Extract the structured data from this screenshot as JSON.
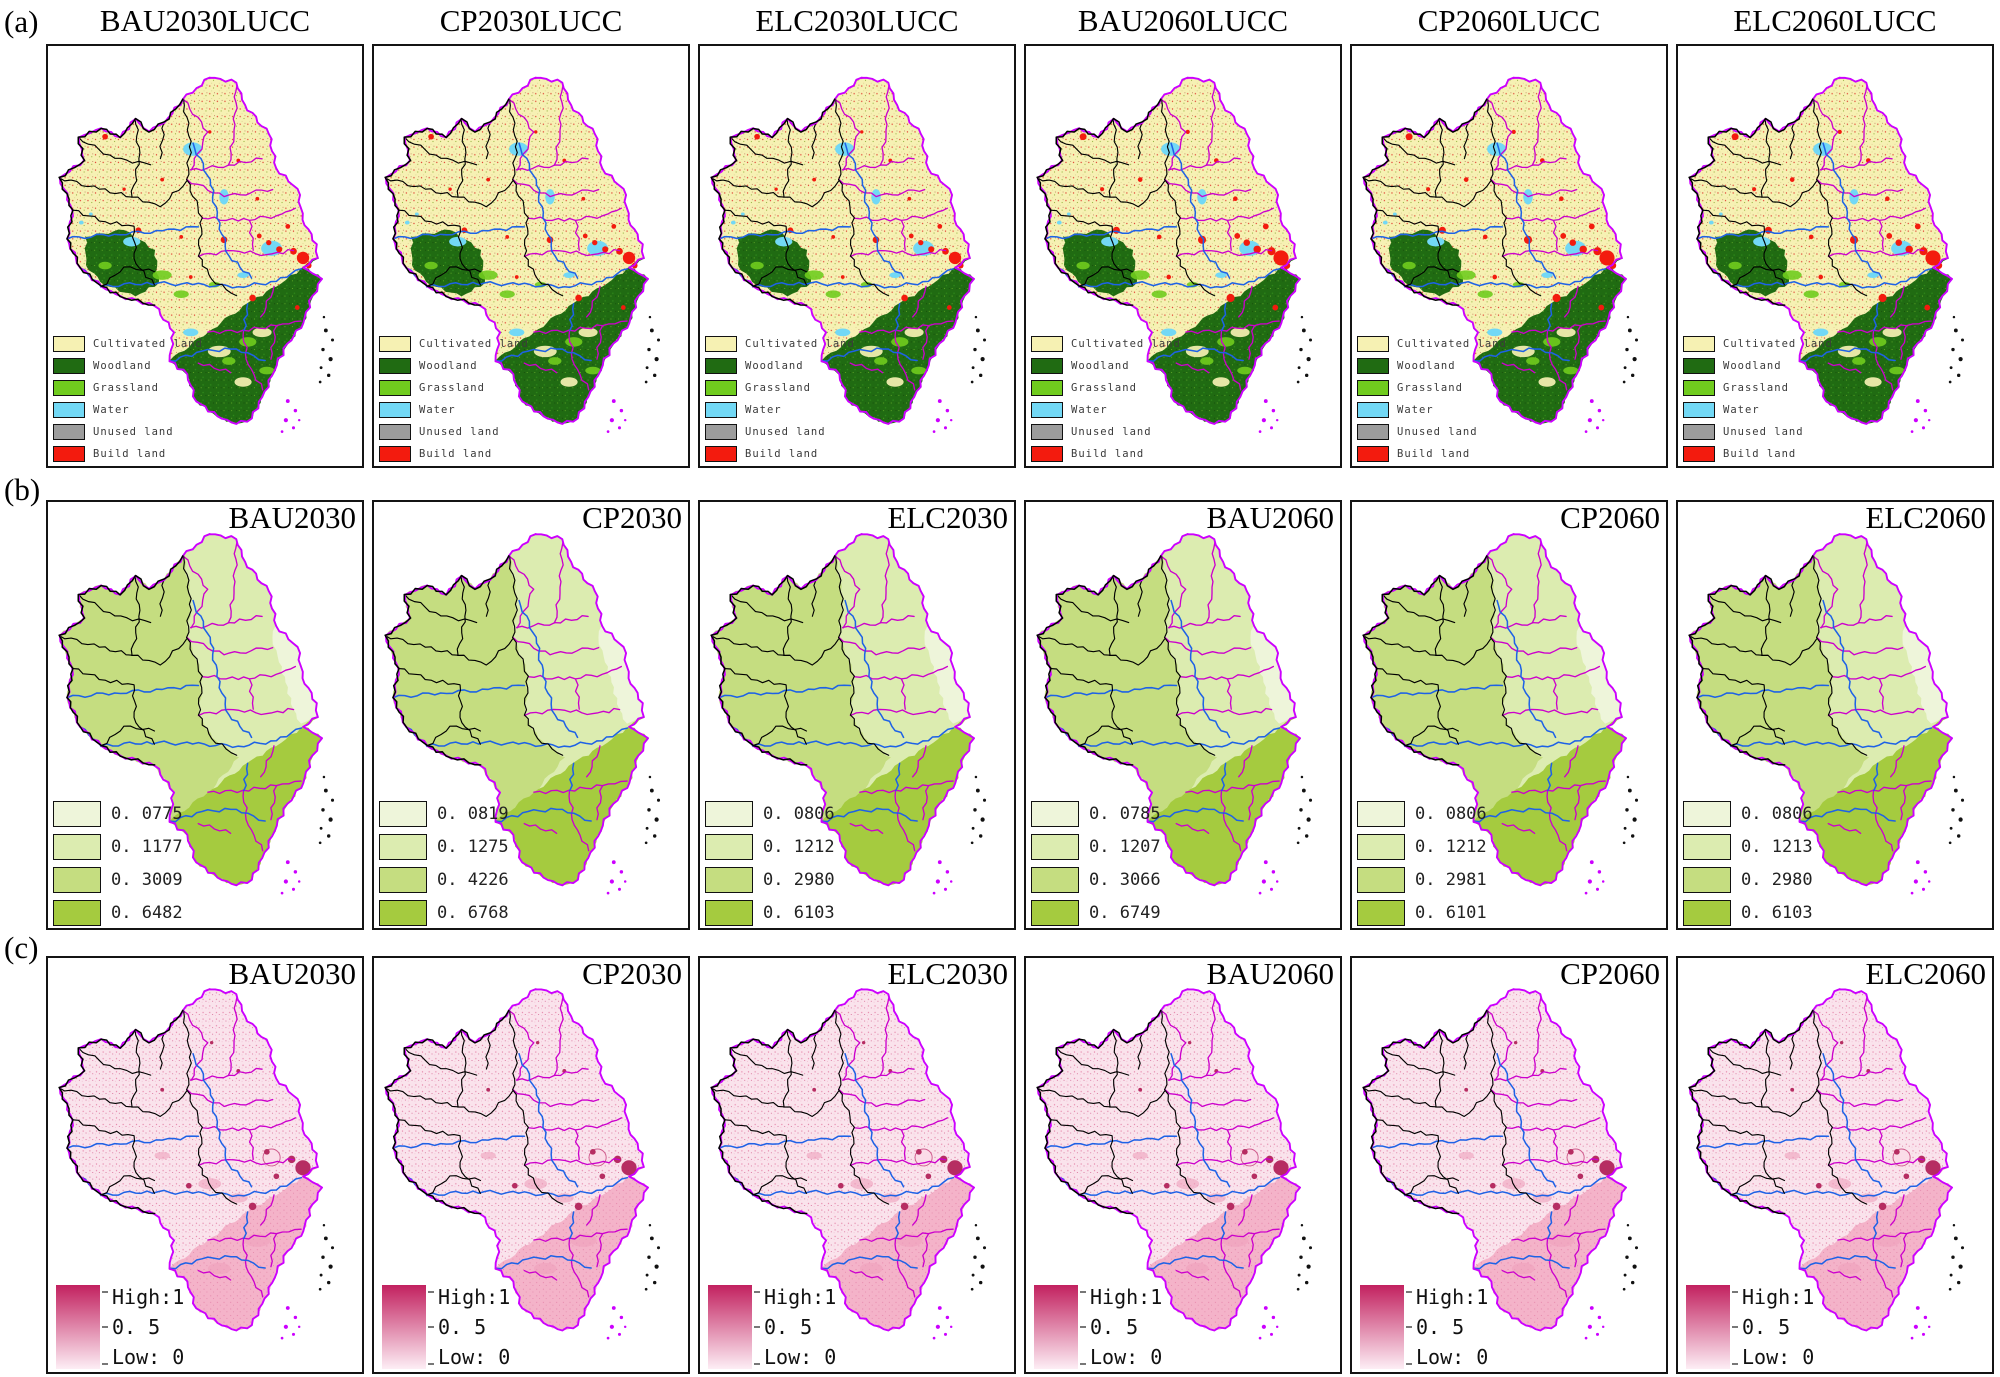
{
  "rows": {
    "a": {
      "label": "(a)",
      "panels": [
        {
          "title": "BAU2030LUCC",
          "variant": "2030"
        },
        {
          "title": "CP2030LUCC",
          "variant": "2030"
        },
        {
          "title": "ELC2030LUCC",
          "variant": "2030"
        },
        {
          "title": "BAU2060LUCC",
          "variant": "2060"
        },
        {
          "title": "CP2060LUCC",
          "variant": "2060"
        },
        {
          "title": "ELC2060LUCC",
          "variant": "2060"
        }
      ],
      "legend": [
        {
          "label": "Cultivated land",
          "color": "#f6f1b3"
        },
        {
          "label": "Woodland",
          "color": "#206b12"
        },
        {
          "label": "Grassland",
          "color": "#70cc1e"
        },
        {
          "label": "Water",
          "color": "#72d8f5"
        },
        {
          "label": "Unused land",
          "color": "#9c9c9c"
        },
        {
          "label": "Build land",
          "color": "#f31b0e"
        }
      ]
    },
    "b": {
      "label": "(b)",
      "class_colors": [
        "#eef5da",
        "#dcecb0",
        "#c5dd80",
        "#a5cb3f"
      ],
      "panels": [
        {
          "title": "BAU2030",
          "values": [
            "0. 0775",
            "0. 1177",
            "0. 3009",
            "0. 6482"
          ]
        },
        {
          "title": "CP2030",
          "values": [
            "0. 0819",
            "0. 1275",
            "0. 4226",
            "0. 6768"
          ]
        },
        {
          "title": "ELC2030",
          "values": [
            "0. 0806",
            "0. 1212",
            "0. 2980",
            "0. 6103"
          ]
        },
        {
          "title": "BAU2060",
          "values": [
            "0. 0785",
            "0. 1207",
            "0. 3066",
            "0. 6749"
          ]
        },
        {
          "title": "CP2060",
          "values": [
            "0. 0806",
            "0. 1212",
            "0. 2981",
            "0. 6101"
          ]
        },
        {
          "title": "ELC2060",
          "values": [
            "0. 0806",
            "0. 1213",
            "0. 2980",
            "0. 6103"
          ]
        }
      ]
    },
    "c": {
      "label": "(c)",
      "panels": [
        {
          "title": "BAU2030"
        },
        {
          "title": "CP2030"
        },
        {
          "title": "ELC2030"
        },
        {
          "title": "BAU2060"
        },
        {
          "title": "CP2060"
        },
        {
          "title": "ELC2060"
        }
      ],
      "legend": {
        "high": "High:1",
        "mid": "0. 5",
        "low": "Low: 0",
        "high_color": "#c2215f",
        "low_color": "#fdeef5"
      }
    }
  },
  "boundary_colors": {
    "outer": "#cc00ff",
    "city": "#cc00cc",
    "river": "#1e62e6",
    "province": "#000000"
  }
}
